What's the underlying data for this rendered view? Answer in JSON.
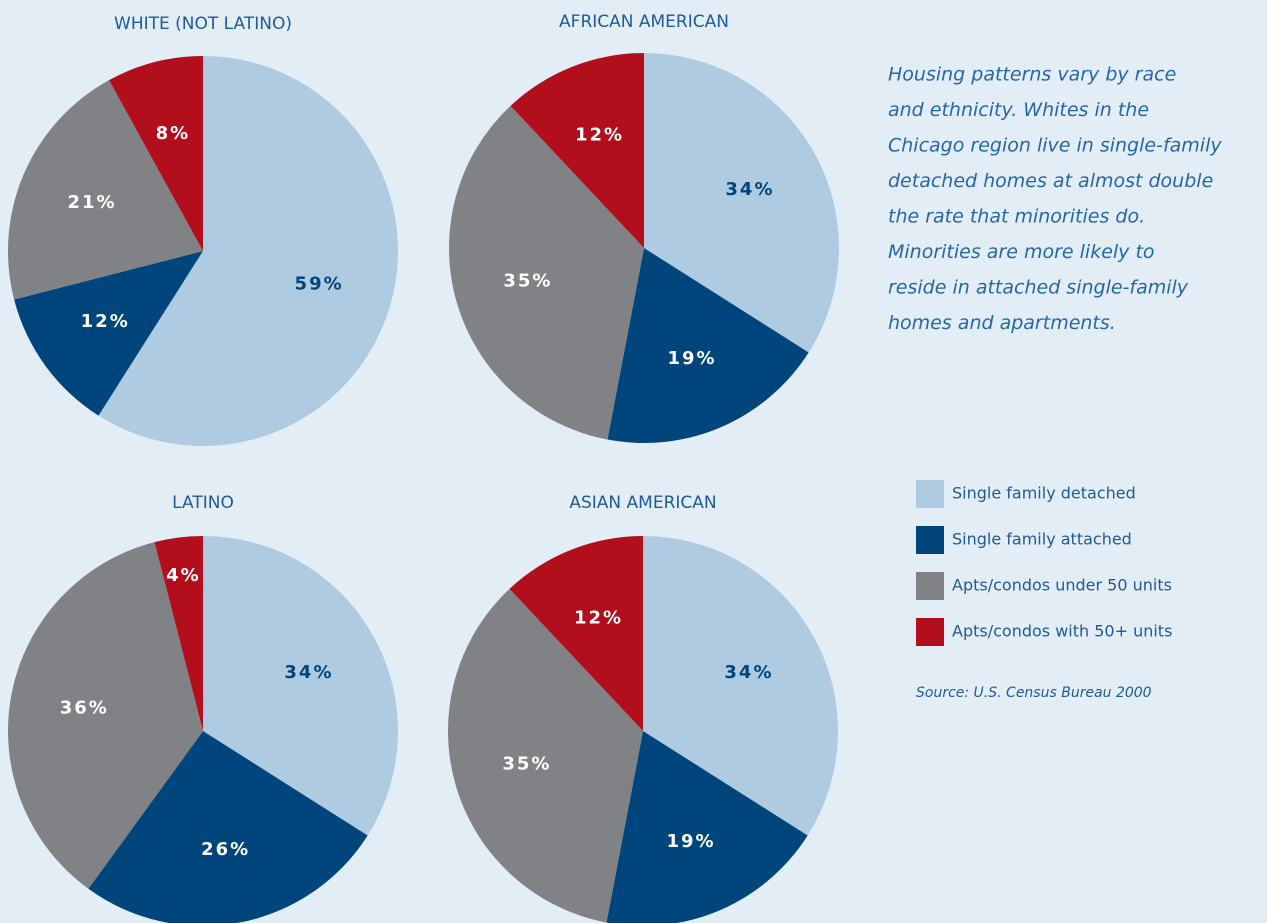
{
  "chart_data": [
    {
      "type": "pie",
      "title": "WHITE (NOT LATINO)",
      "values": [
        59,
        12,
        21,
        8
      ],
      "value_labels": [
        "59%",
        "12%",
        "21%",
        "8%"
      ]
    },
    {
      "type": "pie",
      "title": "AFRICAN AMERICAN",
      "values": [
        34,
        19,
        35,
        12
      ],
      "value_labels": [
        "34%",
        "19%",
        "35%",
        "12%"
      ]
    },
    {
      "type": "pie",
      "title": "LATINO",
      "values": [
        34,
        26,
        36,
        4
      ],
      "value_labels": [
        "34%",
        "26%",
        "36%",
        "4%"
      ]
    },
    {
      "type": "pie",
      "title": "ASIAN AMERICAN",
      "values": [
        34,
        19,
        35,
        12
      ],
      "value_labels": [
        "34%",
        "19%",
        "35%",
        "12%"
      ]
    }
  ],
  "legend": {
    "categories": [
      "Single family detached",
      "Single family attached",
      "Apts/condos under 50 units",
      "Apts/condos with 50+ units"
    ],
    "colors": [
      "#afcbe1",
      "#00457c",
      "#808285",
      "#b20e1c"
    ],
    "label_colors": [
      "#00457c",
      "#ffffff",
      "#ffffff",
      "#ffffff"
    ]
  },
  "annotation": [
    "Housing patterns vary by race",
    "and ethnicity. Whites in the",
    "Chicago region live in single-family",
    "detached homes at almost double",
    "the rate that minorities do.",
    "Minorities are more likely to",
    "reside in attached single-family",
    "homes and apartments."
  ],
  "source": "Source: U.S. Census Bureau 2000"
}
